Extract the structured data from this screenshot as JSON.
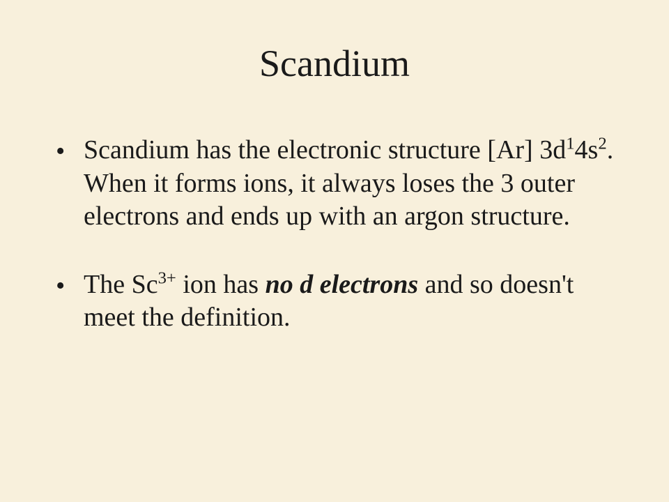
{
  "slide": {
    "title": "Scandium",
    "background_color": "#f8f0dc",
    "text_color": "#1a1a1a",
    "title_fontsize": 54,
    "body_fontsize": 38,
    "font_family": "Times New Roman",
    "bullets": [
      {
        "segments": [
          {
            "text": "Scandium has the electronic structure [Ar] 3d",
            "style": "normal"
          },
          {
            "text": "1",
            "style": "sup"
          },
          {
            "text": "4s",
            "style": "normal"
          },
          {
            "text": "2",
            "style": "sup"
          },
          {
            "text": ". When it forms ions, it always loses the 3 outer electrons and ends up with an argon structure.",
            "style": "normal"
          }
        ]
      },
      {
        "segments": [
          {
            "text": "The Sc",
            "style": "normal"
          },
          {
            "text": "3+",
            "style": "sup"
          },
          {
            "text": " ion has ",
            "style": "normal"
          },
          {
            "text": "no d electrons",
            "style": "emphasis"
          },
          {
            "text": " and so doesn't meet the definition.",
            "style": "normal"
          }
        ]
      }
    ]
  }
}
